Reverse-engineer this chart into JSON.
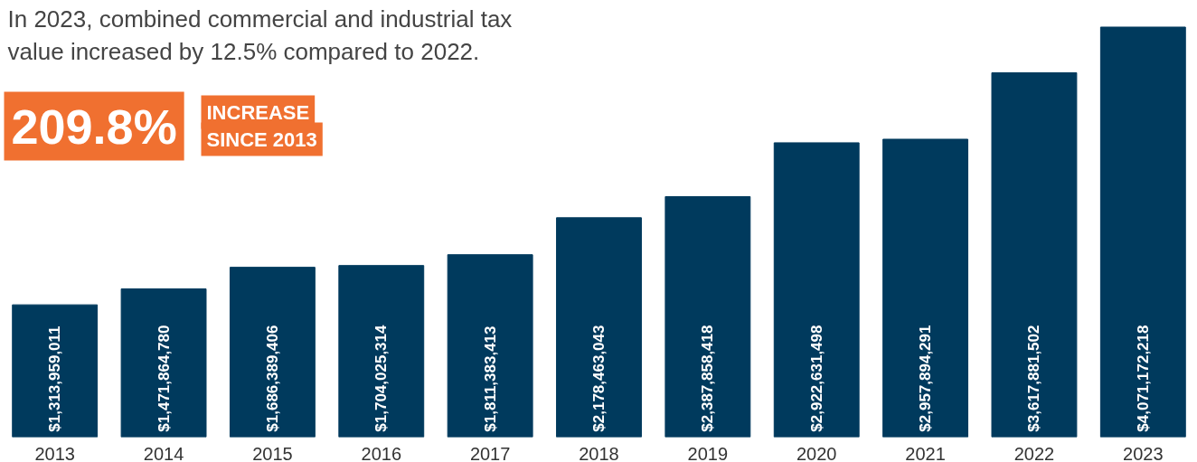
{
  "chart_data": {
    "type": "bar",
    "title": "In 2023, combined commercial and industrial tax value increased by 12.5% compared to 2022.",
    "categories": [
      "2013",
      "2014",
      "2015",
      "2016",
      "2017",
      "2018",
      "2019",
      "2020",
      "2021",
      "2022",
      "2023"
    ],
    "values": [
      1313959011,
      1471864780,
      1686389406,
      1704025314,
      1811383413,
      2178463043,
      2387858418,
      2922631498,
      2957894291,
      3617881502,
      4071172218
    ],
    "value_labels": [
      "$1,313,959,011",
      "$1,471,864,780",
      "$1,686,389,406",
      "$1,704,025,314",
      "$1,811,383,413",
      "$2,178,463,043",
      "$2,387,858,418",
      "$2,922,631,498",
      "$2,957,894,291",
      "$3,617,881,502",
      "$4,071,172,218"
    ],
    "color": "#003a5d",
    "grid": false,
    "tick_labels": "x",
    "annotations": [
      "209.8%",
      "INCREASE SINCE 2013"
    ]
  }
}
